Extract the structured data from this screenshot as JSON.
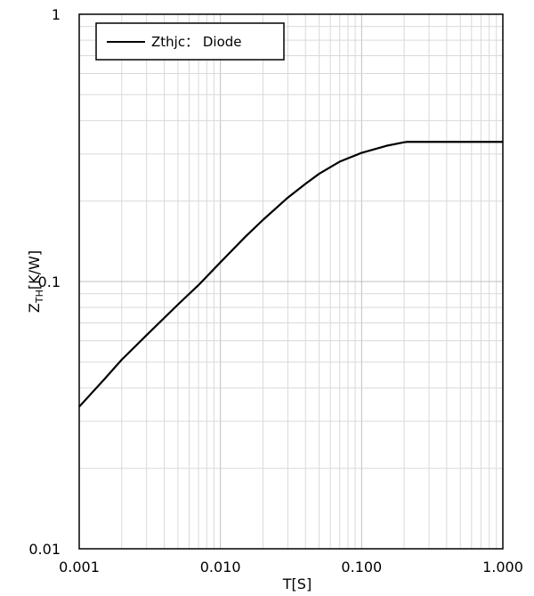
{
  "chart_data": {
    "type": "line",
    "x_scale": "log",
    "y_scale": "log",
    "xlim": [
      0.001,
      1.0
    ],
    "ylim": [
      0.01,
      1
    ],
    "x_ticks": [
      0.001,
      0.01,
      0.1,
      1.0
    ],
    "x_tick_labels": [
      "0.001",
      "0.010",
      "0.100",
      "1.000"
    ],
    "y_ticks": [
      0.01,
      0.1,
      1
    ],
    "y_tick_labels": [
      "0.01",
      "0.1",
      "1"
    ],
    "xlabel": "T[S]",
    "ylabel_main": "Z",
    "ylabel_sub": "TH",
    "ylabel_rest": "[K/W]",
    "grid": true,
    "legend_position": "top-left",
    "series": [
      {
        "name": "Zthjc： Diode",
        "color": "#000000",
        "points": [
          [
            0.001,
            0.034
          ],
          [
            0.0015,
            0.043
          ],
          [
            0.002,
            0.051
          ],
          [
            0.003,
            0.063
          ],
          [
            0.005,
            0.082
          ],
          [
            0.007,
            0.097
          ],
          [
            0.01,
            0.118
          ],
          [
            0.015,
            0.147
          ],
          [
            0.02,
            0.17
          ],
          [
            0.03,
            0.206
          ],
          [
            0.04,
            0.232
          ],
          [
            0.05,
            0.253
          ],
          [
            0.07,
            0.281
          ],
          [
            0.1,
            0.303
          ],
          [
            0.15,
            0.322
          ],
          [
            0.2,
            0.332
          ],
          [
            0.21,
            0.333
          ],
          [
            0.5,
            0.333
          ],
          [
            1.0,
            0.333
          ]
        ]
      }
    ]
  }
}
